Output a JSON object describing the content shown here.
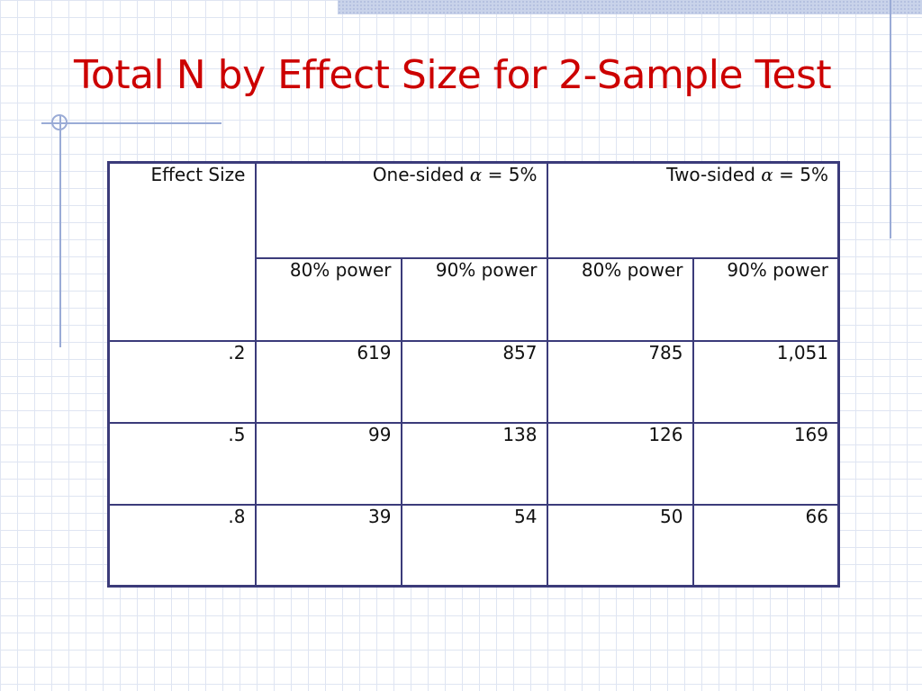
{
  "slide": {
    "title": "Total N by Effect Size for 2-Sample Test"
  },
  "table": {
    "effect_size_header": "Effect Size",
    "groups": [
      {
        "prefix": "One-sided ",
        "alpha": "α",
        "suffix": " = 5%"
      },
      {
        "prefix": "Two-sided ",
        "alpha": "α",
        "suffix": " = 5%"
      }
    ],
    "subheaders": [
      "80% power",
      "90% power",
      "80% power",
      "90% power"
    ],
    "rows": [
      {
        "effect": ".2",
        "values": [
          "619",
          "857",
          "785",
          "1,051"
        ]
      },
      {
        "effect": ".5",
        "values": [
          "99",
          "138",
          "126",
          "169"
        ]
      },
      {
        "effect": ".8",
        "values": [
          "39",
          "54",
          "50",
          "66"
        ]
      }
    ]
  }
}
